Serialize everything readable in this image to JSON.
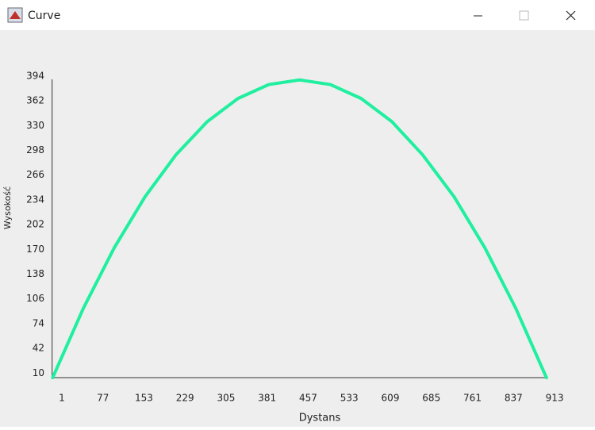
{
  "window": {
    "title": "Curve"
  },
  "chart_data": {
    "type": "line",
    "x_label": "Dystans",
    "y_label": "Wysokość",
    "x": [
      -16,
      41,
      98,
      155,
      212,
      270,
      327,
      384,
      441,
      498,
      555,
      612,
      669,
      727,
      784,
      841,
      898
    ],
    "series": [
      {
        "color": "#1fef9f",
        "values": [
          4,
          94,
          172,
          238,
          292,
          335,
          365,
          383,
          389,
          383,
          365,
          335,
          292,
          238,
          172,
          94,
          4
        ]
      }
    ],
    "xlim": [
      -17,
      930
    ],
    "xticks": [
      1,
      77,
      153,
      229,
      305,
      381,
      457,
      533,
      609,
      685,
      761,
      837,
      913
    ],
    "ylim": [
      0,
      400
    ],
    "yticks": [
      10,
      42,
      74,
      106,
      138,
      170,
      202,
      234,
      266,
      298,
      330,
      362,
      394
    ]
  }
}
